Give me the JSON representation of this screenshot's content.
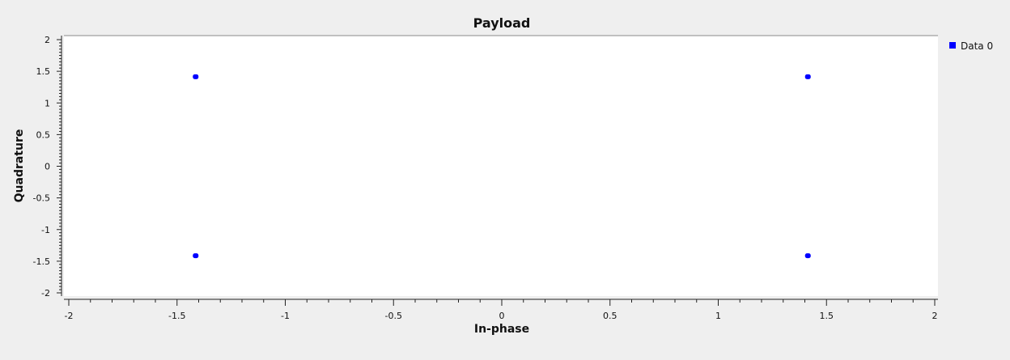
{
  "chart_data": {
    "type": "scatter",
    "title": "Payload",
    "xlabel": "In-phase",
    "ylabel": "Quadrature",
    "xlim": [
      -2,
      2
    ],
    "ylim": [
      -2,
      2
    ],
    "xticks": [
      "-2",
      "-1.5",
      "-1",
      "-0.5",
      "0",
      "0.5",
      "1",
      "1.5",
      "2"
    ],
    "yticks": [
      "2",
      "1.5",
      "1",
      "0.5",
      "0",
      "-0.5",
      "-1",
      "-1.5",
      "-2"
    ],
    "grid": false,
    "legend_position": "top-right",
    "series": [
      {
        "name": "Data 0",
        "color": "#0000ff",
        "points": [
          {
            "x": -1.414,
            "y": 1.414
          },
          {
            "x": 1.414,
            "y": 1.414
          },
          {
            "x": -1.414,
            "y": -1.414
          },
          {
            "x": 1.414,
            "y": -1.414
          }
        ]
      }
    ]
  }
}
